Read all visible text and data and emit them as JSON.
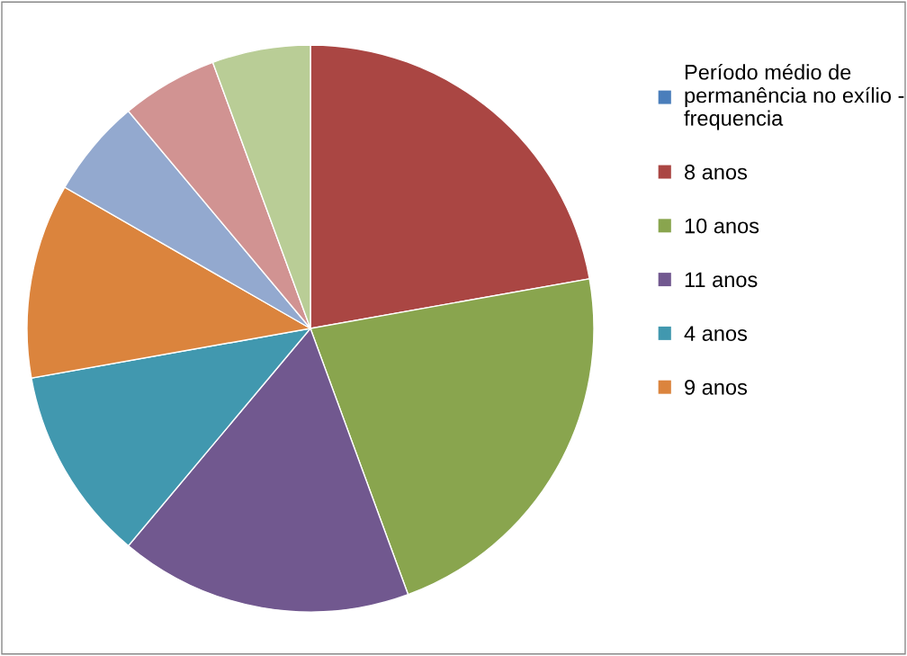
{
  "chart_data": {
    "type": "pie",
    "categories": [
      "Período médio de permanência no exílio - frequencia",
      "8 anos",
      "10 anos",
      "11 anos",
      "4 anos",
      "9 anos",
      null,
      null,
      null
    ],
    "values": [
      0,
      22.2,
      22.2,
      16.7,
      11.1,
      11.1,
      5.6,
      5.5,
      5.6
    ],
    "colors": [
      "#4a7ebb",
      "#aa4643",
      "#89a54e",
      "#71588f",
      "#4198af",
      "#db843d",
      "#93a9cf",
      "#d19392",
      "#b9cd96"
    ],
    "legend": "right"
  }
}
